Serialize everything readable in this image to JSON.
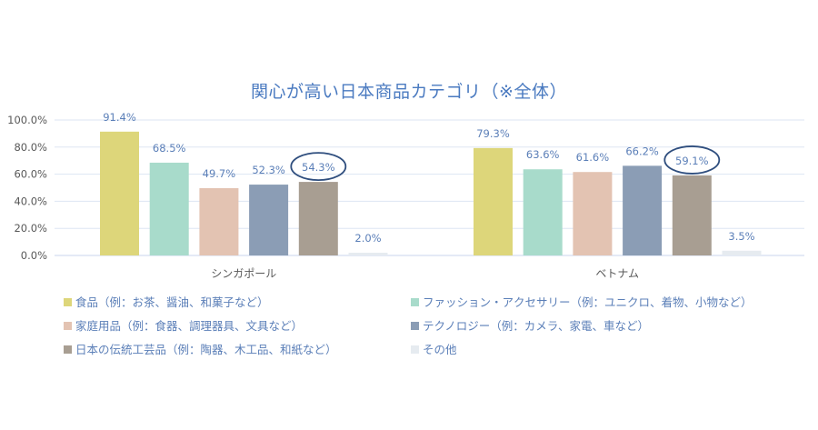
{
  "chart_data": {
    "type": "bar",
    "title": "関心が高い日本商品カテゴリ（※全体）",
    "categories": [
      "シンガポール",
      "ベトナム"
    ],
    "y_ticks": [
      "100.0%",
      "80.0%",
      "60.0%",
      "40.0%",
      "20.0%",
      "0.0%"
    ],
    "ylim": [
      0,
      100
    ],
    "grid": true,
    "legend_position": "bottom",
    "series": [
      {
        "name": "食品（例：お茶、醤油、和菓子など）",
        "values": [
          91.4,
          79.3
        ],
        "labels": [
          "91.4%",
          "79.3%"
        ],
        "color": "#ddd67a"
      },
      {
        "name": "ファッション・アクセサリー（例：ユニクロ、着物、小物など）",
        "values": [
          68.5,
          63.6
        ],
        "labels": [
          "68.5%",
          "63.6%"
        ],
        "color": "#a8dbcb"
      },
      {
        "name": "家庭用品（例：食器、調理器具、文具など）",
        "values": [
          49.7,
          61.6
        ],
        "labels": [
          "49.7%",
          "61.6%"
        ],
        "color": "#e3c3b2"
      },
      {
        "name": "テクノロジー（例：カメラ、家電、車など）",
        "values": [
          52.3,
          66.2
        ],
        "labels": [
          "52.3%",
          "66.2%"
        ],
        "color": "#8b9db5"
      },
      {
        "name": "日本の伝統工芸品（例：陶器、木工品、和紙など）",
        "values": [
          54.3,
          59.1
        ],
        "labels": [
          "54.3%",
          "59.1%"
        ],
        "color": "#a89e92"
      },
      {
        "name": "その他",
        "values": [
          2.0,
          3.5
        ],
        "labels": [
          "2.0%",
          "3.5%"
        ],
        "color": "#e6ebf0"
      }
    ],
    "highlighted_series": "日本の伝統工芸品（例：陶器、木工品、和紙など）",
    "highlight_color": "#2f4e7e"
  }
}
